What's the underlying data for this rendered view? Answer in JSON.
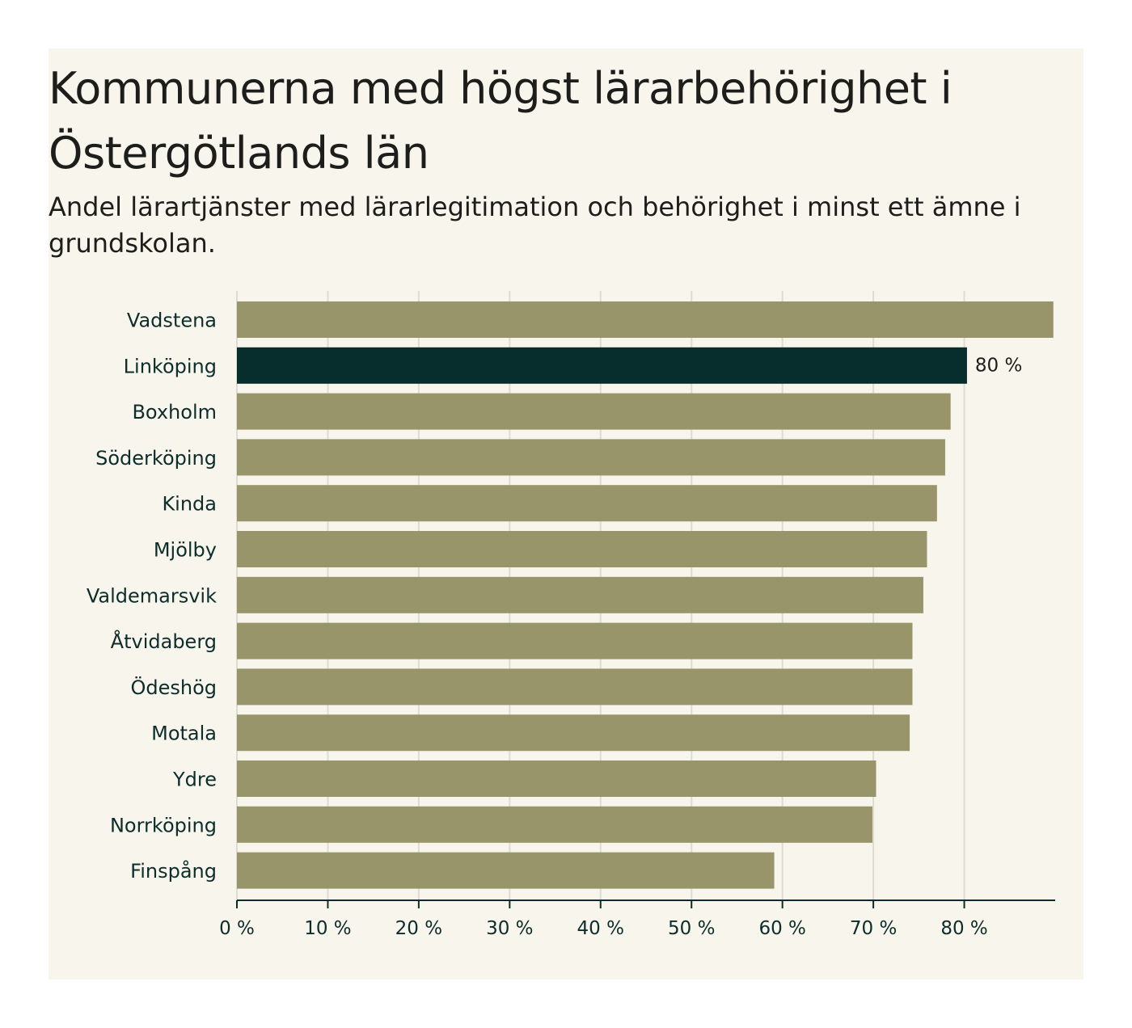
{
  "chart_data": {
    "type": "bar",
    "orientation": "horizontal",
    "title": "Kommunerna med högst lärarbehörighet i Östergötlands län",
    "subtitle": "Andel lärartjänster med lärarlegitimation och behörighet i minst ett ämne i grundskolan.",
    "categories": [
      "Vadstena",
      "Linköping",
      "Boxholm",
      "Söderköping",
      "Kinda",
      "Mjölby",
      "Valdemarsvik",
      "Åtvidaberg",
      "Ödeshög",
      "Motala",
      "Ydre",
      "Norrköping",
      "Finspång"
    ],
    "values": [
      89.8,
      80.3,
      78.5,
      77.9,
      77.0,
      75.9,
      75.5,
      74.3,
      74.3,
      74.0,
      70.3,
      69.9,
      59.1
    ],
    "highlight_index": 1,
    "highlight_label": "80 %",
    "xlim": [
      0,
      90
    ],
    "xticks": [
      0,
      10,
      20,
      30,
      40,
      50,
      60,
      70,
      80
    ],
    "xtick_labels": [
      "0 %",
      "10 %",
      "20 %",
      "30 %",
      "40 %",
      "50 %",
      "60 %",
      "70 %",
      "80 %"
    ],
    "xlabel": "",
    "ylabel": "",
    "grid": true,
    "colors": {
      "bar": "#99956b",
      "highlight": "#072d2c",
      "grid": "#dedcd2",
      "axis": "#0d2d2c",
      "label": "#0d2d2c"
    }
  }
}
